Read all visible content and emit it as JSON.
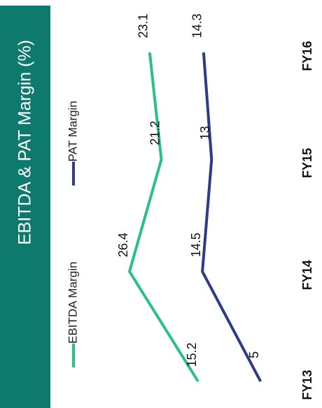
{
  "chart_data": {
    "type": "line",
    "title": "EBITDA & PAT Margin (%)",
    "categories": [
      "FY13",
      "FY14",
      "FY15",
      "FY16"
    ],
    "series": [
      {
        "name": "EBITDA Margin",
        "color": "#2bbf8e",
        "values": [
          15.2,
          26.4,
          21.2,
          23.1
        ]
      },
      {
        "name": "PAT Margin",
        "color": "#2e3a8c",
        "values": [
          5,
          14.5,
          13,
          14.3
        ]
      }
    ],
    "ylim": [
      0,
      30
    ],
    "title_color": "#0e7a6e"
  }
}
